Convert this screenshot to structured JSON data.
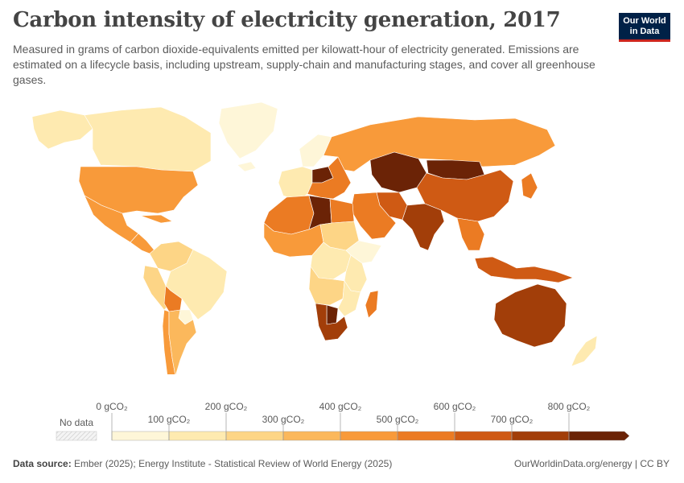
{
  "header": {
    "title": "Carbon intensity of electricity generation, 2017",
    "subtitle": "Measured in grams of carbon dioxide-equivalents emitted per kilowatt-hour of electricity generated. Emissions are estimated on a lifecycle basis, including upstream, supply-chain and manufacturing stages, and cover all greenhouse gases."
  },
  "logo": {
    "line1": "Our World",
    "line2": "in Data"
  },
  "legend": {
    "no_data_label": "No data",
    "tick_labels": [
      "0 gCO₂",
      "100 gCO₂",
      "200 gCO₂",
      "300 gCO₂",
      "400 gCO₂",
      "500 gCO₂",
      "600 gCO₂",
      "700 gCO₂",
      "800 gCO₂"
    ],
    "bins": [
      {
        "range": [
          0,
          100
        ],
        "color": "#fef6d8"
      },
      {
        "range": [
          100,
          200
        ],
        "color": "#feeab0"
      },
      {
        "range": [
          200,
          300
        ],
        "color": "#fdd586"
      },
      {
        "range": [
          300,
          400
        ],
        "color": "#fbb85c"
      },
      {
        "range": [
          400,
          500
        ],
        "color": "#f89a3a"
      },
      {
        "range": [
          500,
          600
        ],
        "color": "#eb7b23"
      },
      {
        "range": [
          600,
          700
        ],
        "color": "#cf5a14"
      },
      {
        "range": [
          700,
          800
        ],
        "color": "#a23e09"
      },
      {
        "range": [
          800,
          900
        ],
        "color": "#6b2306"
      }
    ]
  },
  "regions": [
    {
      "name": "Canada",
      "value": 120
    },
    {
      "name": "Alaska",
      "value": 120
    },
    {
      "name": "Greenland",
      "value": 50
    },
    {
      "name": "United States",
      "value": 420
    },
    {
      "name": "Mexico",
      "value": 470
    },
    {
      "name": "Central America & Caribbean",
      "value": 420
    },
    {
      "name": "Colombia & Venezuela",
      "value": 230
    },
    {
      "name": "Brazil",
      "value": 110
    },
    {
      "name": "Peru & Ecuador",
      "value": 250
    },
    {
      "name": "Bolivia",
      "value": 530
    },
    {
      "name": "Paraguay",
      "value": 30
    },
    {
      "name": "Argentina",
      "value": 370
    },
    {
      "name": "Chile",
      "value": 420
    },
    {
      "name": "Iceland",
      "value": 30
    },
    {
      "name": "Norway & Sweden",
      "value": 30
    },
    {
      "name": "Western Europe",
      "value": 180
    },
    {
      "name": "Eastern Europe",
      "value": 560
    },
    {
      "name": "Poland",
      "value": 800
    },
    {
      "name": "Russia",
      "value": 430
    },
    {
      "name": "Kazakhstan & Central Asia",
      "value": 820
    },
    {
      "name": "Mongolia",
      "value": 850
    },
    {
      "name": "China",
      "value": 620
    },
    {
      "name": "Japan",
      "value": 540
    },
    {
      "name": "India",
      "value": 720
    },
    {
      "name": "Middle East",
      "value": 580
    },
    {
      "name": "Iran",
      "value": 600
    },
    {
      "name": "Southeast Asia",
      "value": 570
    },
    {
      "name": "Indonesia",
      "value": 680
    },
    {
      "name": "Australia",
      "value": 760
    },
    {
      "name": "New Zealand",
      "value": 110
    },
    {
      "name": "North Africa",
      "value": 550
    },
    {
      "name": "Libya",
      "value": 820
    },
    {
      "name": "Egypt",
      "value": 500
    },
    {
      "name": "West Africa",
      "value": 480
    },
    {
      "name": "Central Africa",
      "value": 100
    },
    {
      "name": "Sudan",
      "value": 230
    },
    {
      "name": "Horn of Africa",
      "value": 50
    },
    {
      "name": "East Africa",
      "value": 150
    },
    {
      "name": "Angola & Zambia",
      "value": 200
    },
    {
      "name": "Mozambique",
      "value": 120
    },
    {
      "name": "Botswana",
      "value": 850
    },
    {
      "name": "South Africa",
      "value": 760
    },
    {
      "name": "Madagascar",
      "value": 550
    }
  ],
  "footer": {
    "source_label": "Data source:",
    "source_text": "Ember (2025); Energy Institute - Statistical Review of World Energy (2025)",
    "right_text": "OurWorldinData.org/energy | CC BY"
  }
}
